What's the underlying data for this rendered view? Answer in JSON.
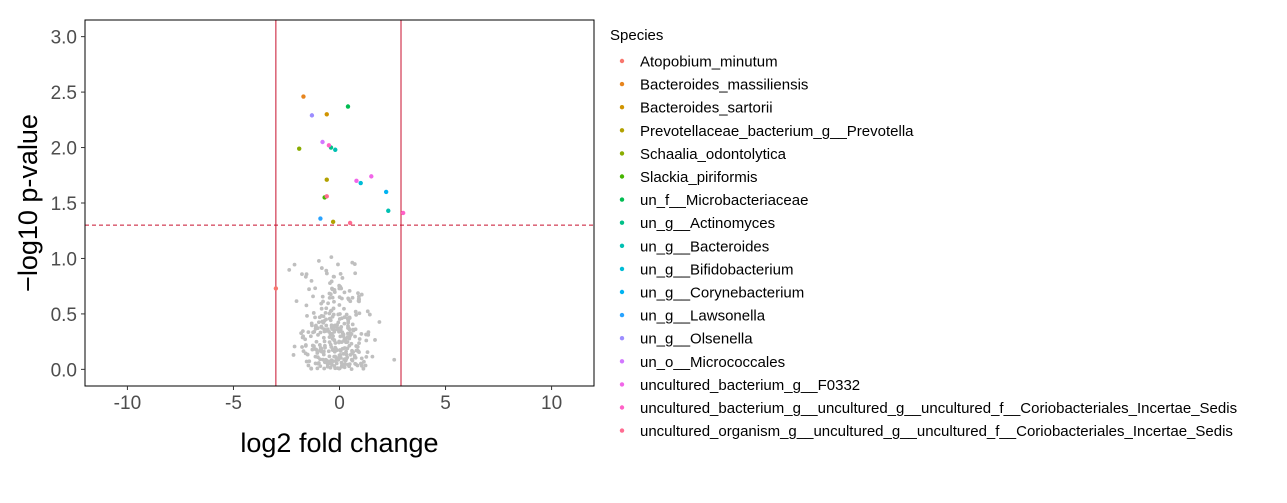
{
  "chart_data": {
    "type": "scatter",
    "title": "",
    "xlabel": "log2 fold change",
    "ylabel": "−log10 p-value",
    "xlim": [
      -12,
      12
    ],
    "ylim": [
      -0.15,
      3.15
    ],
    "x_ticks": [
      -10,
      -5,
      0,
      5,
      10
    ],
    "x_tick_labels": [
      "-10",
      "-5",
      "0",
      "5",
      "10"
    ],
    "y_ticks": [
      0.0,
      0.5,
      1.0,
      1.5,
      2.0,
      2.5,
      3.0
    ],
    "y_tick_labels": [
      "0.0",
      "0.5",
      "1.0",
      "1.5",
      "2.0",
      "2.5",
      "3.0"
    ],
    "grid": false,
    "legend_position": "right",
    "reference_lines": {
      "vertical": [
        -3,
        2.9
      ],
      "horizontal": 1.3,
      "vertical_color": "#c8102e",
      "horizontal_color": "#c8102e"
    },
    "nonsignificant_color": "#bfbfbf",
    "legend_title": "Species",
    "series": [
      {
        "name": "Atopobium_minutum",
        "color": "#F8766D",
        "x": [
          -3.0
        ],
        "y": [
          0.73
        ]
      },
      {
        "name": "Bacteroides_massiliensis",
        "color": "#E7851E",
        "x": [
          -1.7
        ],
        "y": [
          2.46
        ]
      },
      {
        "name": "Bacteroides_sartorii",
        "color": "#D09400",
        "x": [
          -0.6
        ],
        "y": [
          2.3
        ]
      },
      {
        "name": "Prevotellaceae_bacterium_g__Prevotella",
        "color": "#B2A100",
        "x": [
          -0.6,
          -0.3
        ],
        "y": [
          1.71,
          1.33
        ]
      },
      {
        "name": "Schaalia_odontolytica",
        "color": "#89AC00",
        "x": [
          -1.9
        ],
        "y": [
          1.99
        ]
      },
      {
        "name": "Slackia_piriformis",
        "color": "#45B500",
        "x": [
          -0.7
        ],
        "y": [
          1.55
        ]
      },
      {
        "name": "un_f__Microbacteriaceae",
        "color": "#00BC51",
        "x": [
          0.4
        ],
        "y": [
          2.37
        ]
      },
      {
        "name": "un_g__Actinomyces",
        "color": "#00C087",
        "x": [
          -0.4
        ],
        "y": [
          2.0
        ]
      },
      {
        "name": "un_g__Bacteroides",
        "color": "#00C0B2",
        "x": [
          -0.2,
          2.3
        ],
        "y": [
          1.98,
          1.43
        ]
      },
      {
        "name": "un_g__Bifidobacterium",
        "color": "#00BCD6",
        "x": [
          1.0
        ],
        "y": [
          1.68
        ]
      },
      {
        "name": "un_g__Corynebacterium",
        "color": "#00B3F2",
        "x": [
          2.2
        ],
        "y": [
          1.6
        ]
      },
      {
        "name": "un_g__Lawsonella",
        "color": "#29A3FF",
        "x": [
          -0.9
        ],
        "y": [
          1.36
        ]
      },
      {
        "name": "un_g__Olsenella",
        "color": "#9C8DFF",
        "x": [
          -1.3
        ],
        "y": [
          2.29
        ]
      },
      {
        "name": "un_o__Micrococcales",
        "color": "#D277FF",
        "x": [
          -0.8
        ],
        "y": [
          2.05
        ]
      },
      {
        "name": "uncultured_bacterium_g__F0332",
        "color": "#F166E8",
        "x": [
          1.5,
          0.8
        ],
        "y": [
          1.74,
          1.7
        ]
      },
      {
        "name": "uncultured_bacterium_g__uncultured_g__uncultured_f__Coriobacteriales_Incertae_Sedis",
        "color": "#FF61C7",
        "x": [
          -0.5,
          3.0
        ],
        "y": [
          2.02,
          1.41
        ]
      },
      {
        "name": "uncultured_organism_g__uncultured_g__uncultured_f__Coriobacteriales_Incertae_Sedis",
        "color": "#FF6C91",
        "x": [
          -0.6,
          0.5
        ],
        "y": [
          1.56,
          1.32
        ]
      }
    ]
  }
}
